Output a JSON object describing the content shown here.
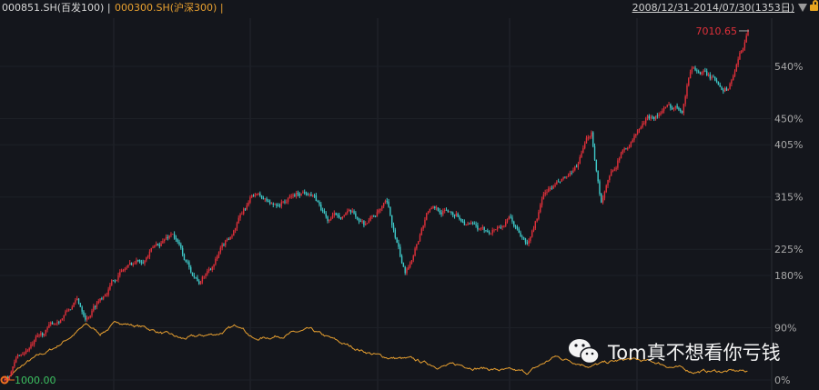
{
  "header": {
    "series1_label": "000851.SH(百发100) |",
    "series2_label": "000300.SH(沪深300) |",
    "date_range": "2008/12/31-2014/07/30(1353日)",
    "dropdown_icon": "triangle-down-icon",
    "lock_icon": "unlock-icon"
  },
  "watermark": {
    "text": "Tom真不想看你亏钱",
    "icon": "wechat-icon"
  },
  "colors": {
    "background": "#14161c",
    "up": "#e0303a",
    "down": "#3ec8c8",
    "benchmark": "#e8a030",
    "start_label": "#3cc060",
    "end_label": "#e0303a"
  },
  "chart_data": {
    "type": "line",
    "x_unit": "trading day",
    "x_range": [
      "2008/12/31",
      "2014/07/30"
    ],
    "y_axis": {
      "ticks": [
        "540%",
        "450%",
        "405%",
        "315%",
        "225%",
        "180%",
        "90%",
        "0%"
      ],
      "tick_values": [
        540,
        450,
        405,
        315,
        225,
        180,
        90,
        0
      ],
      "position": "right"
    },
    "start_label": "1000.00",
    "end_label": "7010.65",
    "grid": true,
    "series": [
      {
        "name": "000851.SH(百发100)",
        "style": "candlestick",
        "points": [
          [
            0,
            0
          ],
          [
            25,
            40
          ],
          [
            74,
            80
          ],
          [
            132,
            135
          ],
          [
            149,
            110
          ],
          [
            207,
            185
          ],
          [
            257,
            215
          ],
          [
            306,
            255
          ],
          [
            331,
            200
          ],
          [
            356,
            170
          ],
          [
            397,
            225
          ],
          [
            455,
            320
          ],
          [
            488,
            300
          ],
          [
            555,
            330
          ],
          [
            588,
            275
          ],
          [
            621,
            290
          ],
          [
            654,
            270
          ],
          [
            695,
            300
          ],
          [
            728,
            180
          ],
          [
            770,
            295
          ],
          [
            820,
            290
          ],
          [
            869,
            250
          ],
          [
            919,
            275
          ],
          [
            952,
            230
          ],
          [
            985,
            325
          ],
          [
            1035,
            350
          ],
          [
            1068,
            425
          ],
          [
            1085,
            310
          ],
          [
            1118,
            385
          ],
          [
            1167,
            445
          ],
          [
            1200,
            465
          ],
          [
            1233,
            470
          ],
          [
            1250,
            545
          ],
          [
            1291,
            515
          ],
          [
            1316,
            505
          ],
          [
            1333,
            545
          ],
          [
            1353,
            601
          ]
        ]
      },
      {
        "name": "000300.SH(沪深300)",
        "style": "line",
        "points": [
          [
            0,
            0
          ],
          [
            41,
            30
          ],
          [
            91,
            55
          ],
          [
            149,
            95
          ],
          [
            174,
            80
          ],
          [
            207,
            100
          ],
          [
            257,
            90
          ],
          [
            323,
            70
          ],
          [
            389,
            80
          ],
          [
            430,
            95
          ],
          [
            455,
            70
          ],
          [
            488,
            75
          ],
          [
            555,
            85
          ],
          [
            621,
            60
          ],
          [
            687,
            40
          ],
          [
            737,
            35
          ],
          [
            786,
            25
          ],
          [
            836,
            25
          ],
          [
            919,
            15
          ],
          [
            952,
            12
          ],
          [
            1002,
            40
          ],
          [
            1068,
            25
          ],
          [
            1134,
            35
          ],
          [
            1184,
            30
          ],
          [
            1250,
            15
          ],
          [
            1353,
            15
          ]
        ]
      }
    ]
  }
}
